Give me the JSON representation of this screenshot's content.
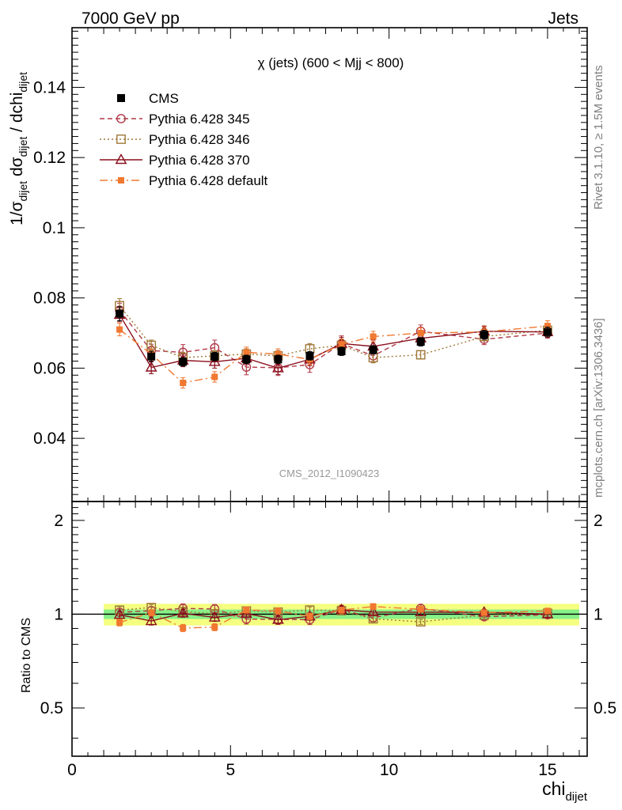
{
  "header": {
    "left": "7000 GeV pp",
    "right": "Jets"
  },
  "side_labels": {
    "rivet": "Rivet 3.1.10, ≥ 1.5M events",
    "mcplots": "mcplots.cern.ch [arXiv:1306.3436]"
  },
  "watermark": "CMS_2012_I1090423",
  "axes": {
    "x_main": "chi",
    "x_sub": "dijet",
    "y_top_parts": [
      "1/σ",
      "dijet",
      " dσ",
      "dijet",
      " / dchi",
      "dijet"
    ],
    "y_bottom": "Ratio to CMS"
  },
  "chart_data": {
    "type": "scatter",
    "title": "χ (jets) (600 < Mjj <  800)",
    "xlim": [
      0,
      16.25
    ],
    "ylim": [
      0.022,
      0.157
    ],
    "ratio_ylim": [
      0.35,
      2.3
    ],
    "x_ticks": [
      0,
      5,
      10,
      15
    ],
    "y_ticks": [
      0.04,
      0.06,
      0.08,
      0.1,
      0.12,
      0.14
    ],
    "y_tick_labels": [
      "0.04",
      "0.06",
      "0.08",
      "0.1",
      "0.12",
      "0.14"
    ],
    "ratio_ticks": [
      0.5,
      1,
      2
    ],
    "ratio_tick_labels": [
      "0.5",
      "1",
      "2"
    ],
    "x_tick_labels": [
      "0",
      "5",
      "10",
      "15"
    ],
    "x": [
      1.5,
      2.5,
      3.5,
      4.5,
      5.5,
      6.5,
      7.5,
      8.5,
      9.5,
      11,
      13,
      15
    ],
    "bins": [
      [
        1,
        2
      ],
      [
        2,
        3
      ],
      [
        3,
        4
      ],
      [
        4,
        5
      ],
      [
        5,
        6
      ],
      [
        6,
        7
      ],
      [
        7,
        8
      ],
      [
        8,
        9
      ],
      [
        9,
        10
      ],
      [
        10,
        12
      ],
      [
        12,
        14
      ],
      [
        14,
        16
      ]
    ],
    "data": {
      "name": "CMS",
      "values": [
        0.0755,
        0.0633,
        0.0618,
        0.0633,
        0.0625,
        0.0625,
        0.0635,
        0.0648,
        0.0652,
        0.0675,
        0.0695,
        0.0703
      ],
      "err": [
        0.002,
        0.0015,
        0.0012,
        0.0012,
        0.0012,
        0.0012,
        0.0012,
        0.0012,
        0.0012,
        0.0012,
        0.0013,
        0.0014
      ]
    },
    "series": [
      {
        "name": "Pythia 6.428 345",
        "color": "#b03a48",
        "dash": "6,4",
        "marker": "circle-open",
        "values": [
          0.0765,
          0.065,
          0.0645,
          0.0658,
          0.0603,
          0.0601,
          0.061,
          0.067,
          0.0635,
          0.0705,
          0.0682,
          0.07
        ],
        "err": [
          0.002,
          0.0018,
          0.0022,
          0.0022,
          0.0022,
          0.0022,
          0.0022,
          0.0022,
          0.0018,
          0.0018,
          0.0015,
          0.0015
        ]
      },
      {
        "name": "Pythia 6.428 346",
        "color": "#a07838",
        "dash": "2,3",
        "marker": "square-open",
        "values": [
          0.0778,
          0.0665,
          0.063,
          0.0635,
          0.064,
          0.0635,
          0.0655,
          0.0665,
          0.063,
          0.0638,
          0.069,
          0.0708
        ],
        "err": [
          0.002,
          0.0015,
          0.0015,
          0.0015,
          0.0015,
          0.0015,
          0.0015,
          0.0015,
          0.0015,
          0.0012,
          0.0012,
          0.0012
        ]
      },
      {
        "name": "Pythia 6.428 370",
        "color": "#8a0e1c",
        "dash": "",
        "marker": "triangle-open",
        "values": [
          0.0752,
          0.0602,
          0.0622,
          0.0618,
          0.0628,
          0.06,
          0.0625,
          0.067,
          0.0662,
          0.0685,
          0.0705,
          0.0703
        ],
        "err": [
          0.002,
          0.0018,
          0.0018,
          0.0018,
          0.0018,
          0.0018,
          0.0018,
          0.0018,
          0.0018,
          0.0015,
          0.0015,
          0.0015
        ]
      },
      {
        "name": "Pythia 6.428 default",
        "color": "#f07830",
        "dash": "10,4,2,4",
        "marker": "square-filled",
        "values": [
          0.071,
          0.064,
          0.0558,
          0.0575,
          0.0645,
          0.064,
          0.0625,
          0.0668,
          0.069,
          0.07,
          0.0703,
          0.072
        ],
        "err": [
          0.0018,
          0.0015,
          0.0015,
          0.0015,
          0.0015,
          0.0015,
          0.0015,
          0.0015,
          0.0015,
          0.0015,
          0.0015,
          0.0015
        ]
      }
    ]
  }
}
